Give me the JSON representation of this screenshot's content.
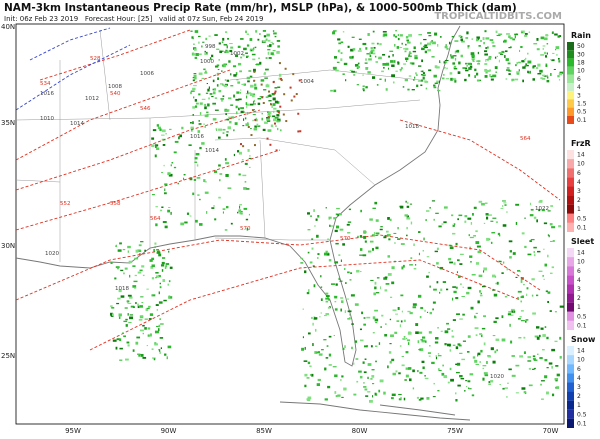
{
  "header": {
    "title": "NAM-3km Instantaneous Precip Rate (mm/hr), MSLP (hPa), & 1000-500mb Thick (dam)",
    "subtitle": "Init: 06z Feb 23 2019   Forecast Hour: [25]   valid at 07z Sun, Feb 24 2019",
    "watermark": "TROPICALTIDBITS.COM"
  },
  "map": {
    "lat_labels": [
      "40N",
      "35N",
      "30N",
      "25N"
    ],
    "lon_labels": [
      "95W",
      "90W",
      "85W",
      "80W",
      "75W",
      "70W"
    ],
    "pressure_labels": [
      "998",
      "1000",
      "1002",
      "1004",
      "1006",
      "1008",
      "1010",
      "1012",
      "1014",
      "1016",
      "1018",
      "1018",
      "1020",
      "1020",
      "1022",
      "1016",
      "1014"
    ],
    "thickness_labels": [
      "528",
      "534",
      "540",
      "546",
      "552",
      "558",
      "564",
      "564",
      "570",
      "570"
    ]
  },
  "legend": [
    {
      "title": "Rain",
      "labels": [
        "50",
        "30",
        "18",
        "10",
        "6",
        "4",
        "3",
        "1.5",
        "0.5",
        "0.1"
      ]
    },
    {
      "title": "FrzR",
      "labels": [
        "14",
        "10",
        "6",
        "4",
        "3",
        "2",
        "1",
        "0.5",
        "0.1"
      ]
    },
    {
      "title": "Sleet",
      "labels": [
        "14",
        "10",
        "6",
        "4",
        "3",
        "2",
        "1",
        "0.5",
        "0.1"
      ]
    },
    {
      "title": "Snow",
      "labels": [
        "14",
        "10",
        "6",
        "4",
        "3",
        "2",
        "1",
        "0.5",
        "0.1"
      ]
    }
  ]
}
